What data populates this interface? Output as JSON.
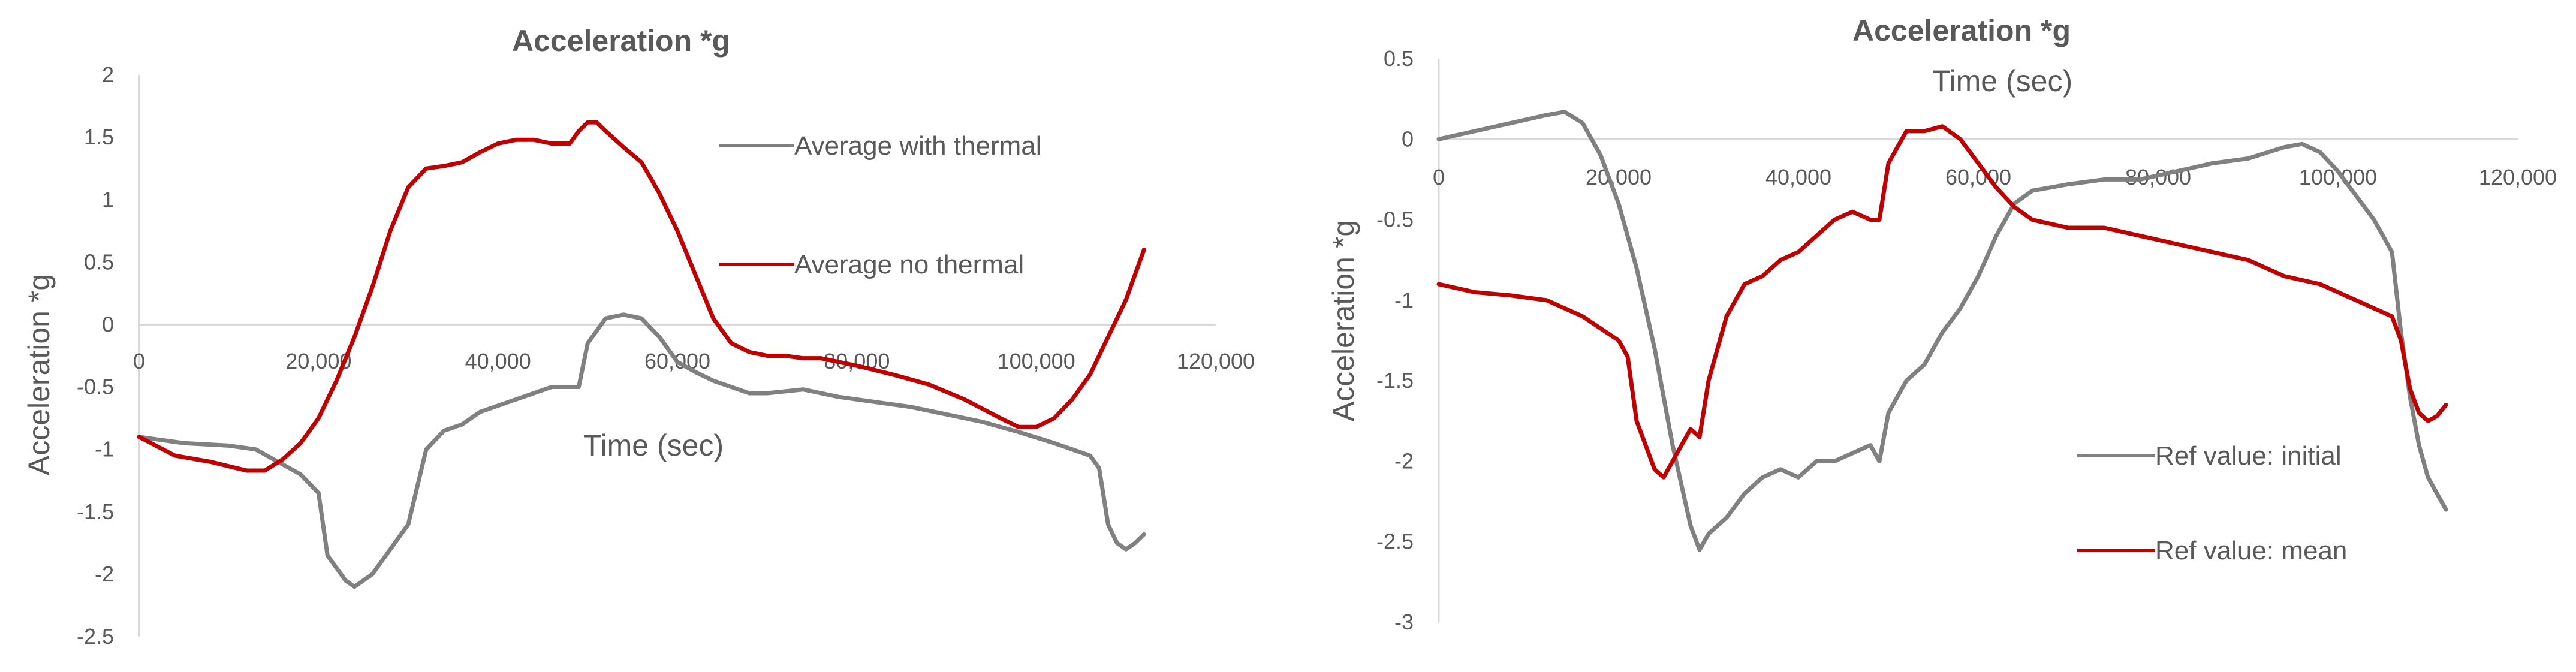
{
  "chart_data": [
    {
      "type": "line",
      "title": "Acceleration *g",
      "xlabel": "Time (sec)",
      "ylabel": "Acceleration *g",
      "xlim": [
        0,
        120000
      ],
      "ylim": [
        -2.5,
        2
      ],
      "xticks": [
        0,
        20000,
        40000,
        60000,
        80000,
        100000,
        120000
      ],
      "xtick_labels": [
        "0",
        "20,000",
        "40,000",
        "60,000",
        "80,000",
        "100,000",
        "120,000"
      ],
      "yticks": [
        2,
        1.5,
        1,
        0.5,
        0,
        -0.5,
        -1,
        -1.5,
        -2,
        -2.5
      ],
      "ytick_labels": [
        "2",
        "1.5",
        "1",
        "0.5",
        "0",
        "-0.5",
        "-1",
        "-1.5",
        "-2",
        "-2.5"
      ],
      "grid": false,
      "legend_position": "right",
      "series": [
        {
          "name": "Average with thermal",
          "color": "#808080",
          "points": [
            [
              0,
              -0.9
            ],
            [
              5000,
              -0.95
            ],
            [
              10000,
              -0.97
            ],
            [
              13000,
              -1.0
            ],
            [
              16000,
              -1.12
            ],
            [
              18000,
              -1.2
            ],
            [
              20000,
              -1.35
            ],
            [
              21000,
              -1.85
            ],
            [
              23000,
              -2.05
            ],
            [
              24000,
              -2.1
            ],
            [
              26000,
              -2.0
            ],
            [
              28000,
              -1.8
            ],
            [
              30000,
              -1.6
            ],
            [
              32000,
              -1.0
            ],
            [
              34000,
              -0.85
            ],
            [
              36000,
              -0.8
            ],
            [
              38000,
              -0.7
            ],
            [
              40000,
              -0.65
            ],
            [
              42000,
              -0.6
            ],
            [
              44000,
              -0.55
            ],
            [
              46000,
              -0.5
            ],
            [
              48000,
              -0.5
            ],
            [
              49000,
              -0.5
            ],
            [
              50000,
              -0.15
            ],
            [
              52000,
              0.05
            ],
            [
              54000,
              0.08
            ],
            [
              56000,
              0.05
            ],
            [
              58000,
              -0.1
            ],
            [
              60000,
              -0.3
            ],
            [
              62000,
              -0.38
            ],
            [
              64000,
              -0.45
            ],
            [
              66000,
              -0.5
            ],
            [
              68000,
              -0.55
            ],
            [
              70000,
              -0.55
            ],
            [
              74000,
              -0.52
            ],
            [
              78000,
              -0.58
            ],
            [
              82000,
              -0.62
            ],
            [
              86000,
              -0.66
            ],
            [
              90000,
              -0.72
            ],
            [
              94000,
              -0.78
            ],
            [
              98000,
              -0.86
            ],
            [
              102000,
              -0.95
            ],
            [
              106000,
              -1.05
            ],
            [
              107000,
              -1.15
            ],
            [
              108000,
              -1.6
            ],
            [
              109000,
              -1.75
            ],
            [
              110000,
              -1.8
            ],
            [
              111000,
              -1.75
            ],
            [
              112000,
              -1.68
            ]
          ]
        },
        {
          "name": "Average no thermal",
          "color": "#c00000",
          "points": [
            [
              0,
              -0.9
            ],
            [
              4000,
              -1.05
            ],
            [
              8000,
              -1.1
            ],
            [
              12000,
              -1.17
            ],
            [
              14000,
              -1.17
            ],
            [
              16000,
              -1.08
            ],
            [
              18000,
              -0.95
            ],
            [
              20000,
              -0.75
            ],
            [
              22000,
              -0.45
            ],
            [
              24000,
              -0.1
            ],
            [
              26000,
              0.3
            ],
            [
              28000,
              0.75
            ],
            [
              30000,
              1.1
            ],
            [
              32000,
              1.25
            ],
            [
              34000,
              1.27
            ],
            [
              36000,
              1.3
            ],
            [
              38000,
              1.38
            ],
            [
              40000,
              1.45
            ],
            [
              42000,
              1.48
            ],
            [
              44000,
              1.48
            ],
            [
              46000,
              1.45
            ],
            [
              48000,
              1.45
            ],
            [
              49000,
              1.55
            ],
            [
              50000,
              1.62
            ],
            [
              51000,
              1.62
            ],
            [
              52000,
              1.55
            ],
            [
              54000,
              1.42
            ],
            [
              56000,
              1.3
            ],
            [
              58000,
              1.05
            ],
            [
              60000,
              0.75
            ],
            [
              62000,
              0.4
            ],
            [
              64000,
              0.05
            ],
            [
              66000,
              -0.15
            ],
            [
              68000,
              -0.22
            ],
            [
              70000,
              -0.25
            ],
            [
              72000,
              -0.25
            ],
            [
              74000,
              -0.27
            ],
            [
              76000,
              -0.27
            ],
            [
              78000,
              -0.3
            ],
            [
              80000,
              -0.33
            ],
            [
              84000,
              -0.4
            ],
            [
              88000,
              -0.48
            ],
            [
              92000,
              -0.6
            ],
            [
              96000,
              -0.75
            ],
            [
              98000,
              -0.82
            ],
            [
              100000,
              -0.82
            ],
            [
              102000,
              -0.75
            ],
            [
              104000,
              -0.6
            ],
            [
              106000,
              -0.4
            ],
            [
              108000,
              -0.1
            ],
            [
              110000,
              0.2
            ],
            [
              112000,
              0.6
            ]
          ]
        }
      ]
    },
    {
      "type": "line",
      "title": "Acceleration *g",
      "xlabel": "Time (sec)",
      "ylabel": "Acceleration *g",
      "xlim": [
        0,
        120000
      ],
      "ylim": [
        -3,
        0.5
      ],
      "xticks": [
        0,
        20000,
        40000,
        60000,
        80000,
        100000,
        120000
      ],
      "xtick_labels": [
        "0",
        "20,000",
        "40,000",
        "60,000",
        "80,000",
        "100,000",
        "120,000"
      ],
      "yticks": [
        0.5,
        0,
        -0.5,
        -1,
        -1.5,
        -2,
        -2.5,
        -3
      ],
      "ytick_labels": [
        "0.5",
        "0",
        "-0.5",
        "-1",
        "-1.5",
        "-2",
        "-2.5",
        "-3"
      ],
      "grid": false,
      "legend_position": "bottom-right",
      "series": [
        {
          "name": "Ref value: initial",
          "color": "#808080",
          "points": [
            [
              0,
              0.0
            ],
            [
              4000,
              0.05
            ],
            [
              8000,
              0.1
            ],
            [
              12000,
              0.15
            ],
            [
              14000,
              0.17
            ],
            [
              16000,
              0.1
            ],
            [
              18000,
              -0.1
            ],
            [
              20000,
              -0.4
            ],
            [
              22000,
              -0.8
            ],
            [
              24000,
              -1.3
            ],
            [
              26000,
              -1.9
            ],
            [
              28000,
              -2.4
            ],
            [
              29000,
              -2.55
            ],
            [
              30000,
              -2.45
            ],
            [
              32000,
              -2.35
            ],
            [
              34000,
              -2.2
            ],
            [
              36000,
              -2.1
            ],
            [
              38000,
              -2.05
            ],
            [
              40000,
              -2.1
            ],
            [
              42000,
              -2.0
            ],
            [
              44000,
              -2.0
            ],
            [
              46000,
              -1.95
            ],
            [
              48000,
              -1.9
            ],
            [
              49000,
              -2.0
            ],
            [
              50000,
              -1.7
            ],
            [
              52000,
              -1.5
            ],
            [
              54000,
              -1.4
            ],
            [
              56000,
              -1.2
            ],
            [
              58000,
              -1.05
            ],
            [
              60000,
              -0.85
            ],
            [
              62000,
              -0.6
            ],
            [
              64000,
              -0.4
            ],
            [
              66000,
              -0.32
            ],
            [
              70000,
              -0.28
            ],
            [
              74000,
              -0.25
            ],
            [
              78000,
              -0.25
            ],
            [
              82000,
              -0.2
            ],
            [
              86000,
              -0.15
            ],
            [
              90000,
              -0.12
            ],
            [
              94000,
              -0.05
            ],
            [
              96000,
              -0.03
            ],
            [
              98000,
              -0.08
            ],
            [
              100000,
              -0.2
            ],
            [
              102000,
              -0.35
            ],
            [
              104000,
              -0.5
            ],
            [
              106000,
              -0.7
            ],
            [
              107000,
              -1.2
            ],
            [
              108000,
              -1.6
            ],
            [
              109000,
              -1.9
            ],
            [
              110000,
              -2.1
            ],
            [
              111000,
              -2.2
            ],
            [
              112000,
              -2.3
            ]
          ]
        },
        {
          "name": "Ref value: mean",
          "color": "#c00000",
          "points": [
            [
              0,
              -0.9
            ],
            [
              4000,
              -0.95
            ],
            [
              8000,
              -0.97
            ],
            [
              12000,
              -1.0
            ],
            [
              16000,
              -1.1
            ],
            [
              20000,
              -1.25
            ],
            [
              21000,
              -1.35
            ],
            [
              22000,
              -1.75
            ],
            [
              24000,
              -2.05
            ],
            [
              25000,
              -2.1
            ],
            [
              26000,
              -2.0
            ],
            [
              28000,
              -1.8
            ],
            [
              29000,
              -1.85
            ],
            [
              30000,
              -1.5
            ],
            [
              32000,
              -1.1
            ],
            [
              34000,
              -0.9
            ],
            [
              36000,
              -0.85
            ],
            [
              38000,
              -0.75
            ],
            [
              40000,
              -0.7
            ],
            [
              42000,
              -0.6
            ],
            [
              44000,
              -0.5
            ],
            [
              46000,
              -0.45
            ],
            [
              48000,
              -0.5
            ],
            [
              49000,
              -0.5
            ],
            [
              50000,
              -0.15
            ],
            [
              52000,
              0.05
            ],
            [
              54000,
              0.05
            ],
            [
              56000,
              0.08
            ],
            [
              58000,
              0.0
            ],
            [
              60000,
              -0.15
            ],
            [
              62000,
              -0.3
            ],
            [
              64000,
              -0.42
            ],
            [
              66000,
              -0.5
            ],
            [
              70000,
              -0.55
            ],
            [
              74000,
              -0.55
            ],
            [
              78000,
              -0.6
            ],
            [
              82000,
              -0.65
            ],
            [
              86000,
              -0.7
            ],
            [
              90000,
              -0.75
            ],
            [
              94000,
              -0.85
            ],
            [
              98000,
              -0.9
            ],
            [
              102000,
              -1.0
            ],
            [
              106000,
              -1.1
            ],
            [
              107000,
              -1.25
            ],
            [
              108000,
              -1.55
            ],
            [
              109000,
              -1.7
            ],
            [
              110000,
              -1.75
            ],
            [
              111000,
              -1.72
            ],
            [
              112000,
              -1.65
            ]
          ]
        }
      ]
    }
  ]
}
